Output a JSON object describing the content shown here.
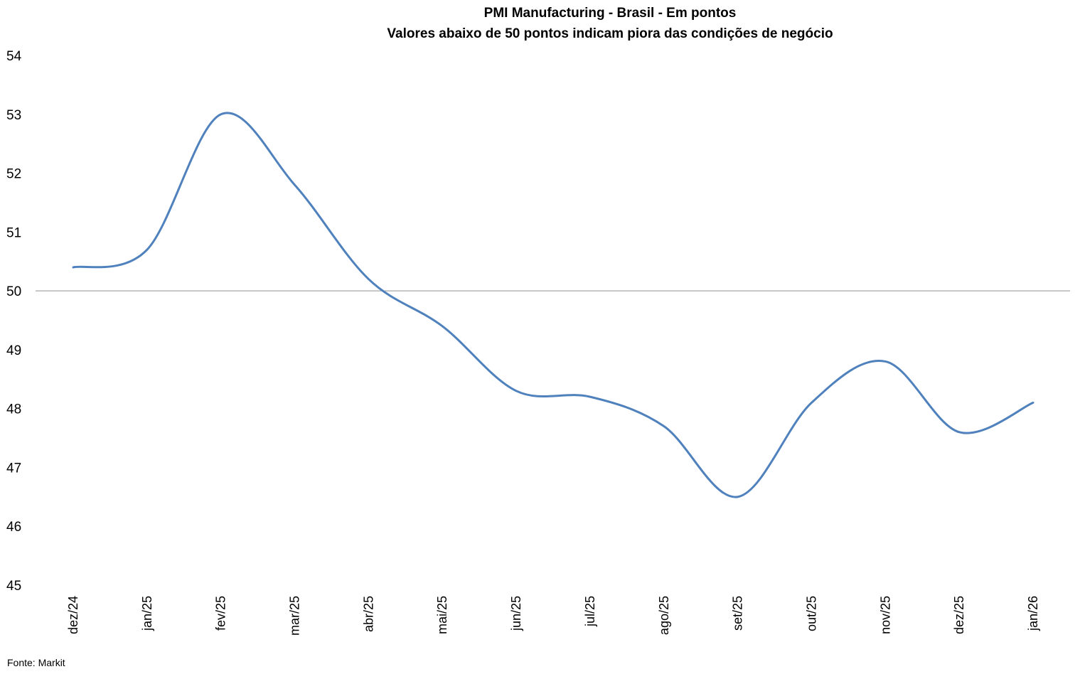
{
  "chart_data": {
    "type": "line",
    "title": "PMI Manufacturing - Brasil - Em pontos",
    "subtitle": "Valores abaixo de 50 pontos indicam piora das condições de negócio",
    "xlabel": "",
    "ylabel": "",
    "categories": [
      "dez/24",
      "jan/25",
      "fev/25",
      "mar/25",
      "abr/25",
      "mai/25",
      "jun/25",
      "jul/25",
      "ago/25",
      "set/25",
      "out/25",
      "nov/25",
      "dez/25",
      "jan/26"
    ],
    "series": [
      {
        "name": "PMI Manufacturing",
        "values": [
          50.4,
          50.7,
          53.0,
          51.8,
          50.2,
          49.4,
          48.3,
          48.2,
          47.7,
          46.5,
          48.1,
          48.8,
          47.6,
          48.1
        ],
        "color": "#4f81bd",
        "smooth": true
      }
    ],
    "reference_line": {
      "value": 50,
      "color": "#a6a6a6"
    },
    "ylim": [
      45,
      54
    ],
    "yticks": [
      "54",
      "53",
      "52",
      "51",
      "50",
      "49",
      "48",
      "47",
      "46",
      "45"
    ],
    "grid": false,
    "legend": "none"
  },
  "footer": {
    "source": "Fonte: Markit"
  }
}
